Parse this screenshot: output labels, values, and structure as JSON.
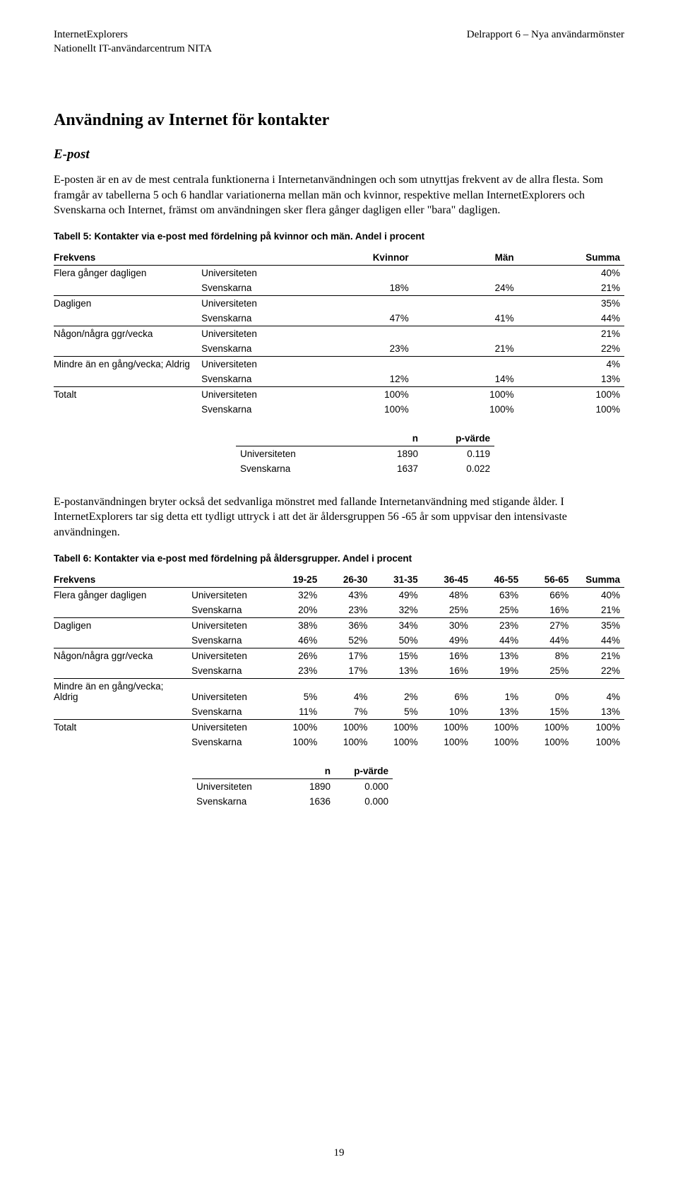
{
  "header": {
    "left_line1": "InternetExplorers",
    "left_line2": "Nationellt IT-användarcentrum NITA",
    "right_line1": "Delrapport 6 – Nya användarmönster"
  },
  "section_title": "Användning av Internet för kontakter",
  "subsection_title": "E-post",
  "para1": "E-posten är en av de mest centrala funktionerna i Internetanvändningen och som utnyttjas frekvent av de allra flesta. Som framgår av tabellerna 5 och 6 handlar variationerna mellan män och kvinnor, respektive mellan InternetExplorers och Svenskarna och Internet, främst om användningen sker flera gånger dagligen eller \"bara\" dagligen.",
  "table5": {
    "caption": "Tabell 5: Kontakter via e-post med fördelning på kvinnor och män. Andel i procent",
    "head": {
      "c1": "Frekvens",
      "c2": "",
      "c3": "Kvinnor",
      "c4": "Män",
      "c5": "Summa"
    },
    "rows": [
      {
        "label": "Flera gånger dagligen",
        "src": "Universiteten",
        "k": "",
        "m": "",
        "s": "40%"
      },
      {
        "label": "",
        "src": "Svenskarna",
        "k": "18%",
        "m": "24%",
        "s": "21%",
        "end": true
      },
      {
        "label": "Dagligen",
        "src": "Universiteten",
        "k": "",
        "m": "",
        "s": "35%"
      },
      {
        "label": "",
        "src": "Svenskarna",
        "k": "47%",
        "m": "41%",
        "s": "44%",
        "end": true
      },
      {
        "label": "Någon/några ggr/vecka",
        "src": "Universiteten",
        "k": "",
        "m": "",
        "s": "21%"
      },
      {
        "label": "",
        "src": "Svenskarna",
        "k": "23%",
        "m": "21%",
        "s": "22%",
        "end": true
      },
      {
        "label": "Mindre än en gång/vecka; Aldrig",
        "src": "Universiteten",
        "k": "",
        "m": "",
        "s": "4%"
      },
      {
        "label": "",
        "src": "Svenskarna",
        "k": "12%",
        "m": "14%",
        "s": "13%",
        "end": true
      },
      {
        "label": "Totalt",
        "src": "Universiteten",
        "k": "100%",
        "m": "100%",
        "s": "100%",
        "final": true
      },
      {
        "label": "",
        "src": "Svenskarna",
        "k": "100%",
        "m": "100%",
        "s": "100%"
      }
    ],
    "stats": {
      "head_n": "n",
      "head_p": "p-värde",
      "rows": [
        {
          "src": "Universiteten",
          "n": "1890",
          "p": "0.119"
        },
        {
          "src": "Svenskarna",
          "n": "1637",
          "p": "0.022"
        }
      ]
    }
  },
  "para2": "E-postanvändningen bryter också det sedvanliga mönstret med fallande Internetanvändning med stigande ålder. I InternetExplorers tar sig detta ett tydligt uttryck i att det är åldersgruppen 56 -65 år som uppvisar den intensivaste användningen.",
  "table6": {
    "caption": "Tabell 6: Kontakter via e-post med fördelning på åldersgrupper. Andel i procent",
    "head": {
      "c1": "Frekvens",
      "c2": "",
      "a1": "19-25",
      "a2": "26-30",
      "a3": "31-35",
      "a4": "36-45",
      "a5": "46-55",
      "a6": "56-65",
      "s": "Summa"
    },
    "rows": [
      {
        "label": "Flera gånger dagligen",
        "src": "Universiteten",
        "v": [
          "32%",
          "43%",
          "49%",
          "48%",
          "63%",
          "66%",
          "40%"
        ]
      },
      {
        "label": "",
        "src": "Svenskarna",
        "v": [
          "20%",
          "23%",
          "32%",
          "25%",
          "25%",
          "16%",
          "21%"
        ],
        "end": true
      },
      {
        "label": "Dagligen",
        "src": "Universiteten",
        "v": [
          "38%",
          "36%",
          "34%",
          "30%",
          "23%",
          "27%",
          "35%"
        ]
      },
      {
        "label": "",
        "src": "Svenskarna",
        "v": [
          "46%",
          "52%",
          "50%",
          "49%",
          "44%",
          "44%",
          "44%"
        ],
        "end": true
      },
      {
        "label": "Någon/några ggr/vecka",
        "src": "Universiteten",
        "v": [
          "26%",
          "17%",
          "15%",
          "16%",
          "13%",
          "8%",
          "21%"
        ]
      },
      {
        "label": "",
        "src": "Svenskarna",
        "v": [
          "23%",
          "17%",
          "13%",
          "16%",
          "19%",
          "25%",
          "22%"
        ],
        "end": true
      },
      {
        "label": "Mindre än en gång/vecka; Aldrig",
        "src": "Universiteten",
        "v": [
          "5%",
          "4%",
          "2%",
          "6%",
          "1%",
          "0%",
          "4%"
        ]
      },
      {
        "label": "",
        "src": "Svenskarna",
        "v": [
          "11%",
          "7%",
          "5%",
          "10%",
          "13%",
          "15%",
          "13%"
        ],
        "end": true
      },
      {
        "label": "Totalt",
        "src": "Universiteten",
        "v": [
          "100%",
          "100%",
          "100%",
          "100%",
          "100%",
          "100%",
          "100%"
        ],
        "final": true
      },
      {
        "label": "",
        "src": "Svenskarna",
        "v": [
          "100%",
          "100%",
          "100%",
          "100%",
          "100%",
          "100%",
          "100%"
        ]
      }
    ],
    "stats": {
      "head_n": "n",
      "head_p": "p-värde",
      "rows": [
        {
          "src": "Universiteten",
          "n": "1890",
          "p": "0.000"
        },
        {
          "src": "Svenskarna",
          "n": "1636",
          "p": "0.000"
        }
      ]
    }
  },
  "page_number": "19"
}
